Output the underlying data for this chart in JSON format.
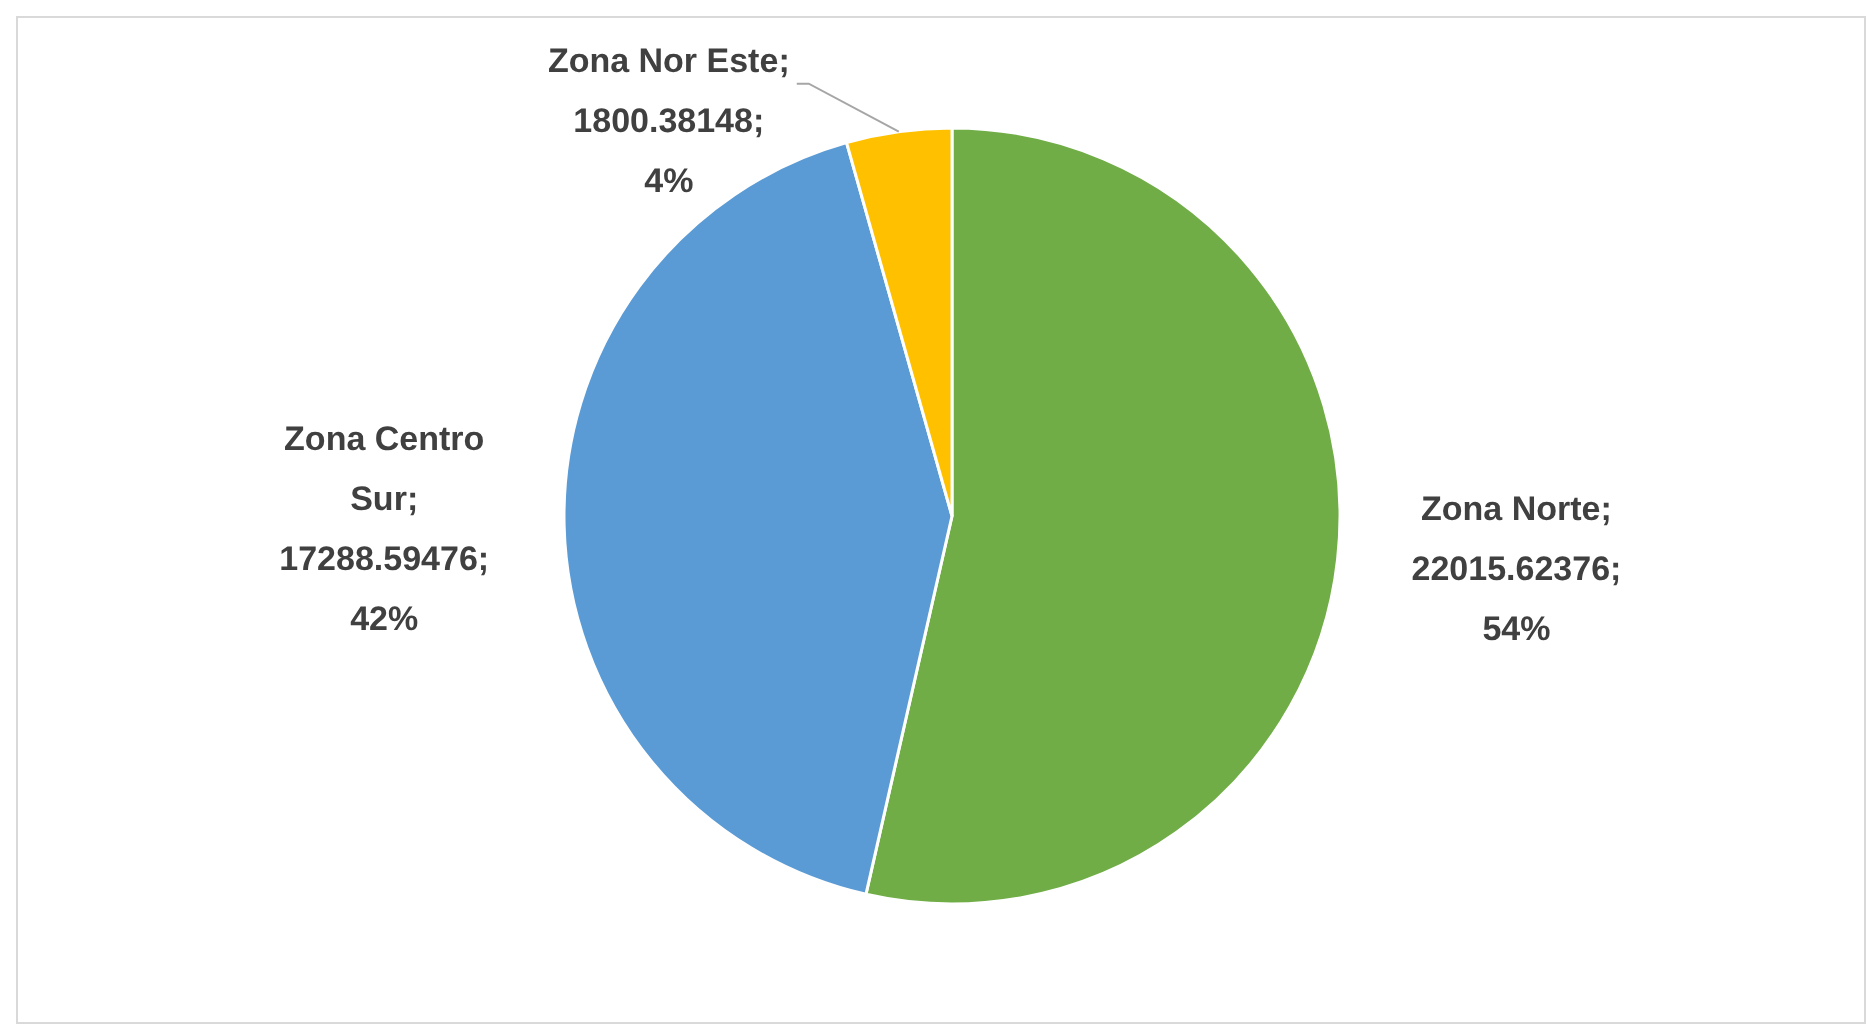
{
  "chart_data": {
    "type": "pie",
    "categories": [
      "Zona Norte",
      "Zona Centro Sur",
      "Zona Nor Este"
    ],
    "values": [
      22015.62376,
      17288.59476,
      1800.38148
    ],
    "colors": [
      "#70ad47",
      "#5b9bd5",
      "#ffc000"
    ],
    "value_labels": [
      "; 22015.62376; 54%",
      "; 17288.59476; 42%",
      "; 1800.38148; 4%"
    ]
  }
}
